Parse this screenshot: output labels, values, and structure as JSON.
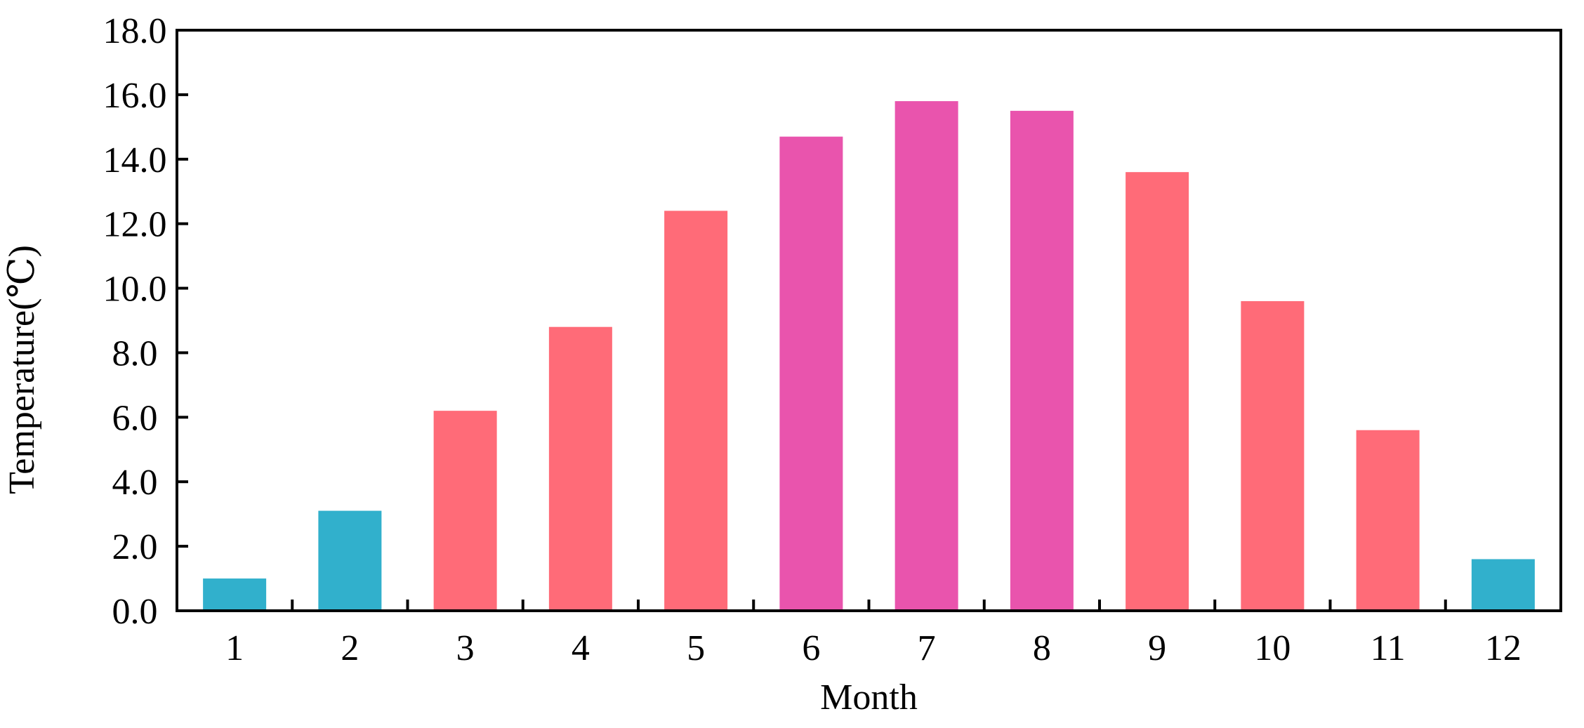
{
  "chart_data": {
    "type": "bar",
    "title": "",
    "xlabel": "Month",
    "ylabel": "Temperature(℃)",
    "ylim": [
      0,
      18
    ],
    "yticks": [
      "0.0",
      "2.0",
      "4.0",
      "6.0",
      "8.0",
      "10.0",
      "12.0",
      "14.0",
      "16.0",
      "18.0"
    ],
    "grid": false,
    "categories": [
      "1",
      "2",
      "3",
      "4",
      "5",
      "6",
      "7",
      "8",
      "9",
      "10",
      "11",
      "12"
    ],
    "values": [
      1.0,
      3.1,
      6.2,
      8.8,
      12.4,
      14.7,
      15.8,
      15.5,
      13.6,
      9.6,
      5.6,
      1.6
    ],
    "bar_colors": [
      "#31b0cc",
      "#31b0cc",
      "#ff6b78",
      "#ff6b78",
      "#ff6b78",
      "#e954ad",
      "#e954ad",
      "#e954ad",
      "#ff6b78",
      "#ff6b78",
      "#ff6b78",
      "#31b0cc"
    ]
  }
}
